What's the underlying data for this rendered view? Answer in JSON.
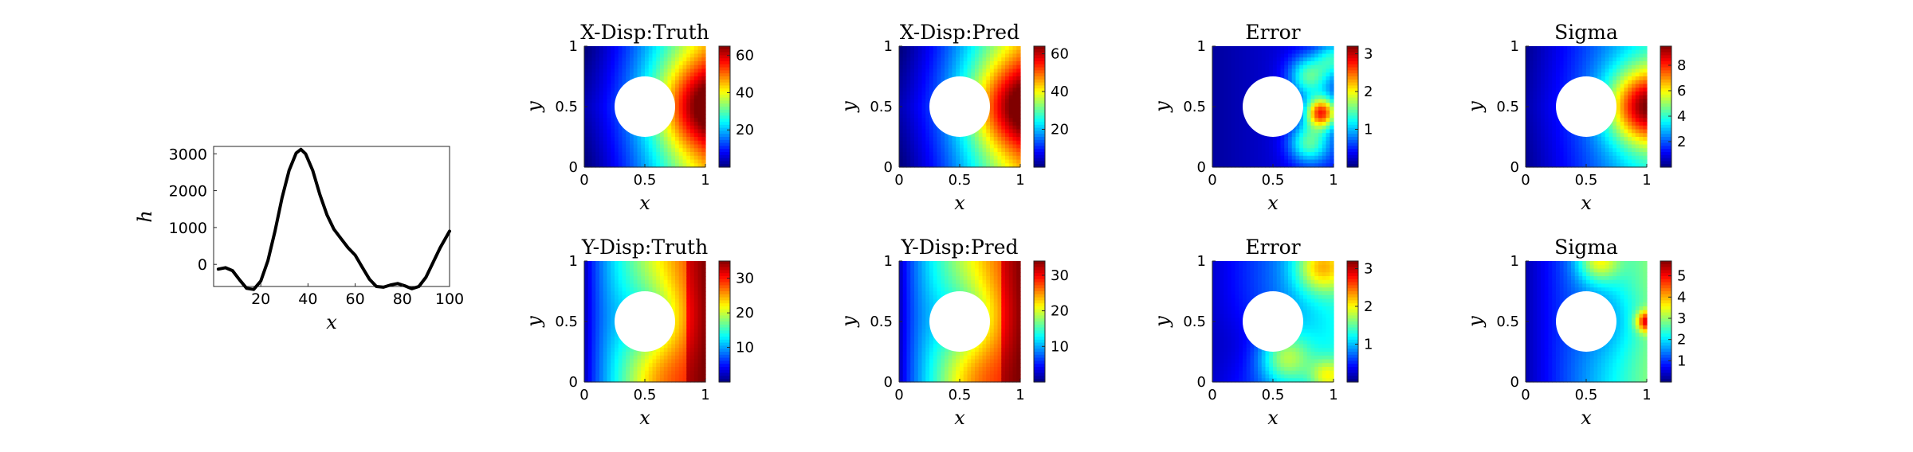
{
  "chart_data": [
    {
      "type": "line",
      "x": [
        2,
        5,
        8,
        11,
        14,
        17,
        20,
        23,
        26,
        29,
        32,
        35,
        37,
        39,
        42,
        45,
        48,
        51,
        54,
        57,
        60,
        63,
        66,
        69,
        72,
        75,
        78,
        81,
        84,
        87,
        90,
        93,
        96,
        100
      ],
      "series": [
        {
          "values": [
            -130,
            -90,
            -170,
            -420,
            -650,
            -680,
            -450,
            100,
            900,
            1800,
            2550,
            3020,
            3120,
            3000,
            2550,
            1900,
            1350,
            950,
            700,
            450,
            250,
            -80,
            -400,
            -600,
            -620,
            -560,
            -520,
            -580,
            -660,
            -600,
            -350,
            50,
            450,
            900
          ]
        }
      ],
      "title": "",
      "xlabel": "x",
      "ylabel": "h",
      "xlim": [
        0,
        100
      ],
      "ylim": [
        -600,
        3200
      ],
      "xticks": [
        "20",
        "40",
        "60",
        "80",
        "100"
      ],
      "yticks": [
        "0",
        "1000",
        "2000",
        "3000"
      ],
      "color": "#000000"
    },
    {
      "type": "heatmap",
      "title": "X-Disp:Truth",
      "field": "xdisp",
      "xlabel": "x",
      "ylabel": "y",
      "xticks": [
        "0",
        "0.5",
        "1"
      ],
      "yticks": [
        "0",
        "0.5",
        "1"
      ],
      "colorbar": {
        "range": [
          0,
          65
        ],
        "ticks": [
          "20",
          "40",
          "60"
        ]
      },
      "hole": {
        "center": [
          0.5,
          0.5
        ],
        "radius": 0.25
      }
    },
    {
      "type": "heatmap",
      "title": "X-Disp:Pred",
      "field": "xdisp",
      "xlabel": "x",
      "ylabel": "y",
      "xticks": [
        "0",
        "0.5",
        "1"
      ],
      "yticks": [
        "0",
        "0.5",
        "1"
      ],
      "colorbar": {
        "range": [
          0,
          64
        ],
        "ticks": [
          "20",
          "40",
          "60"
        ]
      },
      "hole": {
        "center": [
          0.5,
          0.5
        ],
        "radius": 0.25
      }
    },
    {
      "type": "heatmap",
      "title": "Error",
      "field": "xerr",
      "xlabel": "x",
      "ylabel": "y",
      "xticks": [
        "0",
        "0.5",
        "1"
      ],
      "yticks": [
        "0",
        "0.5",
        "1"
      ],
      "colorbar": {
        "range": [
          0,
          3.2
        ],
        "ticks": [
          "1",
          "2",
          "3"
        ]
      },
      "hole": {
        "center": [
          0.5,
          0.5
        ],
        "radius": 0.25
      }
    },
    {
      "type": "heatmap",
      "title": "Sigma",
      "field": "xsig",
      "xlabel": "x",
      "ylabel": "y",
      "xticks": [
        "0",
        "0.5",
        "1"
      ],
      "yticks": [
        "0",
        "0.5",
        "1"
      ],
      "colorbar": {
        "range": [
          0,
          9.5
        ],
        "ticks": [
          "2",
          "4",
          "6",
          "8"
        ]
      },
      "hole": {
        "center": [
          0.5,
          0.5
        ],
        "radius": 0.25
      }
    },
    {
      "type": "heatmap",
      "title": "Y-Disp:Truth",
      "field": "ydisp",
      "xlabel": "x",
      "ylabel": "y",
      "xticks": [
        "0",
        "0.5",
        "1"
      ],
      "yticks": [
        "0",
        "0.5",
        "1"
      ],
      "colorbar": {
        "range": [
          0,
          35
        ],
        "ticks": [
          "10",
          "20",
          "30"
        ]
      },
      "hole": {
        "center": [
          0.5,
          0.5
        ],
        "radius": 0.25
      }
    },
    {
      "type": "heatmap",
      "title": "Y-Disp:Pred",
      "field": "ydisp",
      "xlabel": "x",
      "ylabel": "y",
      "xticks": [
        "0",
        "0.5",
        "1"
      ],
      "yticks": [
        "0",
        "0.5",
        "1"
      ],
      "colorbar": {
        "range": [
          0,
          34
        ],
        "ticks": [
          "10",
          "20",
          "30"
        ]
      },
      "hole": {
        "center": [
          0.5,
          0.5
        ],
        "radius": 0.25
      }
    },
    {
      "type": "heatmap",
      "title": "Error",
      "field": "yerr",
      "xlabel": "x",
      "ylabel": "y",
      "xticks": [
        "0",
        "0.5",
        "1"
      ],
      "yticks": [
        "0",
        "0.5",
        "1"
      ],
      "colorbar": {
        "range": [
          0,
          3.2
        ],
        "ticks": [
          "1",
          "2",
          "3"
        ]
      },
      "hole": {
        "center": [
          0.5,
          0.5
        ],
        "radius": 0.25
      }
    },
    {
      "type": "heatmap",
      "title": "Sigma",
      "field": "ysig",
      "xlabel": "x",
      "ylabel": "y",
      "xticks": [
        "0",
        "0.5",
        "1"
      ],
      "yticks": [
        "0",
        "0.5",
        "1"
      ],
      "colorbar": {
        "range": [
          0,
          5.7
        ],
        "ticks": [
          "1",
          "2",
          "3",
          "4",
          "5"
        ]
      },
      "hole": {
        "center": [
          0.5,
          0.5
        ],
        "radius": 0.25
      }
    }
  ]
}
